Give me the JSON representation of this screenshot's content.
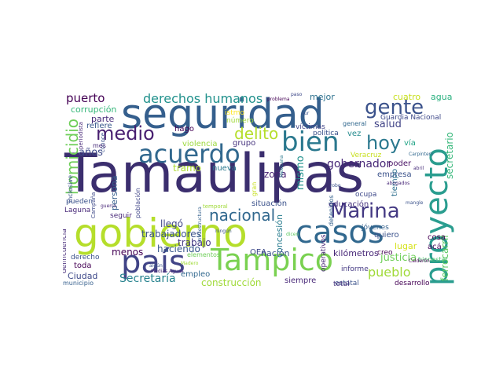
{
  "word_cloud": {
    "words": [
      {
        "text": "Tamaulipas",
        "color": "#3b2e6e"
      },
      {
        "text": "seguridad",
        "color": "#355f8d"
      },
      {
        "text": "gobierno",
        "color": "#b5de2b"
      },
      {
        "text": "proyecto",
        "color": "#2a9d8f"
      },
      {
        "text": "Tampico",
        "color": "#7ad151"
      },
      {
        "text": "casos",
        "color": "#31688e"
      },
      {
        "text": "país",
        "color": "#414487"
      },
      {
        "text": "acuerdo",
        "color": "#31688e"
      },
      {
        "text": "bien",
        "color": "#2a788e"
      },
      {
        "text": "Marina",
        "color": "#443983"
      },
      {
        "text": "nacional",
        "color": "#31688e"
      },
      {
        "text": "gente",
        "color": "#3b528b"
      },
      {
        "text": "medio",
        "color": "#481f70"
      },
      {
        "text": "delito",
        "color": "#b5de2b"
      },
      {
        "text": "hoy",
        "color": "#2a788e"
      },
      {
        "text": "homicidio",
        "color": "#6ece58"
      },
      {
        "text": "derechos humanos",
        "color": "#21918c"
      },
      {
        "text": "pueblo",
        "color": "#a0da39"
      },
      {
        "text": "Secretaría",
        "color": "#26828e"
      },
      {
        "text": "gobernador",
        "color": "#482878"
      },
      {
        "text": "puerto",
        "color": "#440154"
      },
      {
        "text": "salud",
        "color": "#414487"
      },
      {
        "text": "años",
        "color": "#3e4989"
      },
      {
        "text": "mismo",
        "color": "#21918c"
      },
      {
        "text": "construcción",
        "color": "#a0da39"
      },
      {
        "text": "justicia",
        "color": "#6ece58"
      },
      {
        "text": "secretario",
        "color": "#35b779"
      },
      {
        "text": "ferrocarril",
        "color": "#5ec962"
      },
      {
        "text": "trabajadores",
        "color": "#3b528b"
      },
      {
        "text": "concesión",
        "color": "#287c8e"
      },
      {
        "text": "persona",
        "color": "#355f8d"
      },
      {
        "text": "zona",
        "color": "#482173"
      },
      {
        "text": "tramo",
        "color": "#addc30"
      },
      {
        "text": "haciendo",
        "color": "#38588c"
      },
      {
        "text": "menos",
        "color": "#440154"
      },
      {
        "text": "nación",
        "color": "#3b528b"
      },
      {
        "text": "trabajo",
        "color": "#443983"
      },
      {
        "text": "llegó",
        "color": "#404688"
      },
      {
        "text": "Ciudad",
        "color": "#3e4989"
      },
      {
        "text": "toda",
        "color": "#440154"
      },
      {
        "text": "parte",
        "color": "#472c7a"
      },
      {
        "text": "refiere",
        "color": "#38588c"
      },
      {
        "text": "corrupción",
        "color": "#35b779"
      },
      {
        "text": "millones",
        "color": "#1f9e89"
      },
      {
        "text": "mejor",
        "color": "#2c718e"
      },
      {
        "text": "cuatro",
        "color": "#c8e020"
      },
      {
        "text": "agua",
        "color": "#2ab07f"
      },
      {
        "text": "hago",
        "color": "#440154"
      },
      {
        "text": "istmo",
        "color": "#fde725"
      },
      {
        "text": "número",
        "color": "#a0da39"
      },
      {
        "text": "violencia",
        "color": "#9bd93c"
      },
      {
        "text": "grupo",
        "color": "#46337e"
      },
      {
        "text": "víctimas",
        "color": "#414487"
      },
      {
        "text": "política",
        "color": "#3b528b"
      },
      {
        "text": "vez",
        "color": "#238a8d"
      },
      {
        "text": "Guardia Nacional",
        "color": "#3e4989"
      },
      {
        "text": "general",
        "color": "#31688e"
      },
      {
        "text": "empresa",
        "color": "#3b528b"
      },
      {
        "text": "vía",
        "color": "#20a386"
      },
      {
        "text": "poder",
        "color": "#471063"
      },
      {
        "text": "tiempo",
        "color": "#2e6f8e"
      },
      {
        "text": "Veracruz",
        "color": "#c8e020"
      },
      {
        "text": "situación",
        "color": "#3b528b"
      },
      {
        "text": "educación",
        "color": "#46327e"
      },
      {
        "text": "jóvenes",
        "color": "#34618d"
      },
      {
        "text": "quiero",
        "color": "#3b528b"
      },
      {
        "text": "cosa",
        "color": "#440154"
      },
      {
        "text": "acá",
        "color": "#46085c"
      },
      {
        "text": "lugar",
        "color": "#d5e21a"
      },
      {
        "text": "bienestar",
        "color": "#4ac16d"
      },
      {
        "text": "kilómetros",
        "color": "#482878"
      },
      {
        "text": "creo",
        "color": "#440154"
      },
      {
        "text": "informe",
        "color": "#443983"
      },
      {
        "text": "estatal",
        "color": "#3b528b"
      },
      {
        "text": "desarrollo",
        "color": "#440154"
      },
      {
        "text": "siempre",
        "color": "#482878"
      },
      {
        "text": "total",
        "color": "#46337e"
      },
      {
        "text": "empleo",
        "color": "#31688e"
      },
      {
        "text": "OEA",
        "color": "#3e4989"
      },
      {
        "text": "operativos",
        "color": "#482878"
      },
      {
        "text": "detenidos",
        "color": "#34618d"
      },
      {
        "text": "nueva",
        "color": "#2a788e"
      },
      {
        "text": "ocupa",
        "color": "#3e4989"
      },
      {
        "text": "delincuencia",
        "color": "#472c7a"
      },
      {
        "text": "derecho",
        "color": "#3b528b"
      },
      {
        "text": "municipio",
        "color": "#355f8d"
      },
      {
        "text": "pueden",
        "color": "#3b528b"
      },
      {
        "text": "Laguna",
        "color": "#482878"
      },
      {
        "text": "inclusive",
        "color": "#3b528b"
      },
      {
        "text": "Campaña",
        "color": "#3e4989"
      },
      {
        "text": "población",
        "color": "#404688"
      },
      {
        "text": "conoce",
        "color": "#3b528b"
      },
      {
        "text": "mes",
        "color": "#472c7a"
      },
      {
        "text": "periodista",
        "color": "#482878"
      },
      {
        "text": "seguir",
        "color": "#482878"
      },
      {
        "text": "elementos",
        "color": "#6ece58"
      },
      {
        "text": "infraestructura",
        "color": "#34618d"
      },
      {
        "text": "ningún",
        "color": "#3b528b"
      },
      {
        "text": "temporal",
        "color": "#a0da39"
      },
      {
        "text": "gran",
        "color": "#c8e020"
      },
      {
        "text": "Mexicana",
        "color": "#2a788e"
      },
      {
        "text": "robo",
        "color": "#3b528b"
      },
      {
        "text": "abogados",
        "color": "#482878"
      },
      {
        "text": "abril",
        "color": "#472c7a"
      },
      {
        "text": "Carpintero",
        "color": "#31688e"
      },
      {
        "text": "mangle",
        "color": "#3b528b"
      },
      {
        "text": "Calderón",
        "color": "#440154"
      },
      {
        "text": "dicen",
        "color": "#5ec962"
      },
      {
        "text": "paso",
        "color": "#3e4989"
      },
      {
        "text": "problema",
        "color": "#440154"
      },
      {
        "text": "sur",
        "color": "#3b528b"
      },
      {
        "text": "Madero",
        "color": "#a0da39"
      },
      {
        "text": "algún",
        "color": "#3b528b"
      },
      {
        "text": "Medias Aguas",
        "color": "#482878"
      },
      {
        "text": "guerra",
        "color": "#482878"
      }
    ]
  }
}
